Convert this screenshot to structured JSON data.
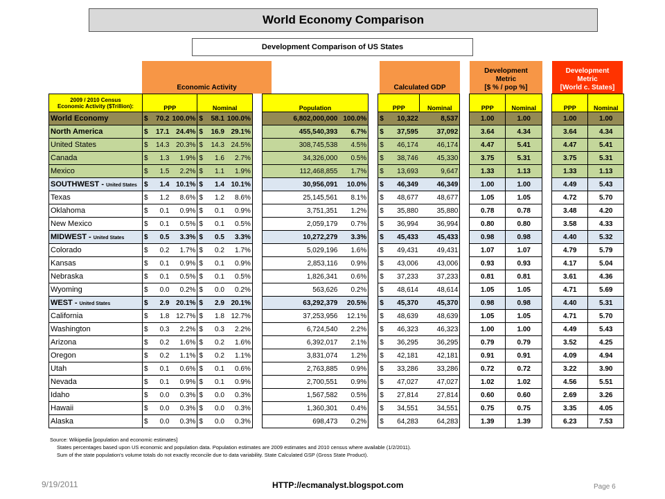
{
  "title": "World Economy Comparison",
  "subtitle": "Development Comparison of US States",
  "headers": {
    "economic_activity": "Economic Activity",
    "calculated_gdp": "Calculated GDP",
    "dev_metric_pop_1": "Development",
    "dev_metric_pop_2": "Metric",
    "dev_metric_pop_3": "[$ % / pop %]",
    "dev_metric_world_1": "Development",
    "dev_metric_world_2": "Metric",
    "dev_metric_world_3": "[World c. States]"
  },
  "subheaders": {
    "census_1": "2009 / 2010 Census",
    "census_2": "Economic Activity ($Trillion):",
    "ppp": "PPP",
    "nominal": "Nominal",
    "population": "Population",
    "gdp_ppp": "PPP",
    "gdp_nominal": "Nominal",
    "metric_ppp": "PPP",
    "metric_nominal": "Nominal",
    "world_ppp": "PPP",
    "world_nominal": "Nominal"
  },
  "rows": [
    {
      "label": "World Economy",
      "suffix": "",
      "ppp": "70.2",
      "ppp_pct": "100.0%",
      "nom": "58.1",
      "nom_pct": "100.0%",
      "pop": "6,802,000,000",
      "pop_pct": "100.0%",
      "gdp_ppp": "10,322",
      "gdp_nom": "8,537",
      "m_ppp": "1.00",
      "m_nom": "1.00",
      "w_ppp": "1.00",
      "w_nom": "1.00"
    },
    {
      "label": "North America",
      "suffix": "",
      "ppp": "17.1",
      "ppp_pct": "24.4%",
      "nom": "16.9",
      "nom_pct": "29.1%",
      "pop": "455,540,393",
      "pop_pct": "6.7%",
      "gdp_ppp": "37,595",
      "gdp_nom": "37,092",
      "m_ppp": "3.64",
      "m_nom": "4.34",
      "w_ppp": "3.64",
      "w_nom": "4.34"
    },
    {
      "label": "United States",
      "suffix": "",
      "ppp": "14.3",
      "ppp_pct": "20.3%",
      "nom": "14.3",
      "nom_pct": "24.5%",
      "pop": "308,745,538",
      "pop_pct": "4.5%",
      "gdp_ppp": "46,174",
      "gdp_nom": "46,174",
      "m_ppp": "4.47",
      "m_nom": "5.41",
      "w_ppp": "4.47",
      "w_nom": "5.41"
    },
    {
      "label": "Canada",
      "suffix": "",
      "ppp": "1.3",
      "ppp_pct": "1.9%",
      "nom": "1.6",
      "nom_pct": "2.7%",
      "pop": "34,326,000",
      "pop_pct": "0.5%",
      "gdp_ppp": "38,746",
      "gdp_nom": "45,330",
      "m_ppp": "3.75",
      "m_nom": "5.31",
      "w_ppp": "3.75",
      "w_nom": "5.31"
    },
    {
      "label": "Mexico",
      "suffix": "",
      "ppp": "1.5",
      "ppp_pct": "2.2%",
      "nom": "1.1",
      "nom_pct": "1.9%",
      "pop": "112,468,855",
      "pop_pct": "1.7%",
      "gdp_ppp": "13,693",
      "gdp_nom": "9,647",
      "m_ppp": "1.33",
      "m_nom": "1.13",
      "w_ppp": "1.33",
      "w_nom": "1.13"
    },
    {
      "label": "SOUTHWEST - ",
      "suffix": "United States",
      "ppp": "1.4",
      "ppp_pct": "10.1%",
      "nom": "1.4",
      "nom_pct": "10.1%",
      "pop": "30,956,091",
      "pop_pct": "10.0%",
      "gdp_ppp": "46,349",
      "gdp_nom": "46,349",
      "m_ppp": "1.00",
      "m_nom": "1.00",
      "w_ppp": "4.49",
      "w_nom": "5.43"
    },
    {
      "label": "Texas",
      "suffix": "",
      "ppp": "1.2",
      "ppp_pct": "8.6%",
      "nom": "1.2",
      "nom_pct": "8.6%",
      "pop": "25,145,561",
      "pop_pct": "8.1%",
      "gdp_ppp": "48,677",
      "gdp_nom": "48,677",
      "m_ppp": "1.05",
      "m_nom": "1.05",
      "w_ppp": "4.72",
      "w_nom": "5.70"
    },
    {
      "label": "Oklahoma",
      "suffix": "",
      "ppp": "0.1",
      "ppp_pct": "0.9%",
      "nom": "0.1",
      "nom_pct": "0.9%",
      "pop": "3,751,351",
      "pop_pct": "1.2%",
      "gdp_ppp": "35,880",
      "gdp_nom": "35,880",
      "m_ppp": "0.78",
      "m_nom": "0.78",
      "w_ppp": "3.48",
      "w_nom": "4.20"
    },
    {
      "label": "New Mexico",
      "suffix": "",
      "ppp": "0.1",
      "ppp_pct": "0.5%",
      "nom": "0.1",
      "nom_pct": "0.5%",
      "pop": "2,059,179",
      "pop_pct": "0.7%",
      "gdp_ppp": "36,994",
      "gdp_nom": "36,994",
      "m_ppp": "0.80",
      "m_nom": "0.80",
      "w_ppp": "3.58",
      "w_nom": "4.33"
    },
    {
      "label": "MIDWEST - ",
      "suffix": "United States",
      "ppp": "0.5",
      "ppp_pct": "3.3%",
      "nom": "0.5",
      "nom_pct": "3.3%",
      "pop": "10,272,279",
      "pop_pct": "3.3%",
      "gdp_ppp": "45,433",
      "gdp_nom": "45,433",
      "m_ppp": "0.98",
      "m_nom": "0.98",
      "w_ppp": "4.40",
      "w_nom": "5.32"
    },
    {
      "label": "Colorado",
      "suffix": "",
      "ppp": "0.2",
      "ppp_pct": "1.7%",
      "nom": "0.2",
      "nom_pct": "1.7%",
      "pop": "5,029,196",
      "pop_pct": "1.6%",
      "gdp_ppp": "49,431",
      "gdp_nom": "49,431",
      "m_ppp": "1.07",
      "m_nom": "1.07",
      "w_ppp": "4.79",
      "w_nom": "5.79"
    },
    {
      "label": "Kansas",
      "suffix": "",
      "ppp": "0.1",
      "ppp_pct": "0.9%",
      "nom": "0.1",
      "nom_pct": "0.9%",
      "pop": "2,853,116",
      "pop_pct": "0.9%",
      "gdp_ppp": "43,006",
      "gdp_nom": "43,006",
      "m_ppp": "0.93",
      "m_nom": "0.93",
      "w_ppp": "4.17",
      "w_nom": "5.04"
    },
    {
      "label": "Nebraska",
      "suffix": "",
      "ppp": "0.1",
      "ppp_pct": "0.5%",
      "nom": "0.1",
      "nom_pct": "0.5%",
      "pop": "1,826,341",
      "pop_pct": "0.6%",
      "gdp_ppp": "37,233",
      "gdp_nom": "37,233",
      "m_ppp": "0.81",
      "m_nom": "0.81",
      "w_ppp": "3.61",
      "w_nom": "4.36"
    },
    {
      "label": "Wyoming",
      "suffix": "",
      "ppp": "0.0",
      "ppp_pct": "0.2%",
      "nom": "0.0",
      "nom_pct": "0.2%",
      "pop": "563,626",
      "pop_pct": "0.2%",
      "gdp_ppp": "48,614",
      "gdp_nom": "48,614",
      "m_ppp": "1.05",
      "m_nom": "1.05",
      "w_ppp": "4.71",
      "w_nom": "5.69"
    },
    {
      "label": "WEST - ",
      "suffix": "United States",
      "ppp": "2.9",
      "ppp_pct": "20.1%",
      "nom": "2.9",
      "nom_pct": "20.1%",
      "pop": "63,292,379",
      "pop_pct": "20.5%",
      "gdp_ppp": "45,370",
      "gdp_nom": "45,370",
      "m_ppp": "0.98",
      "m_nom": "0.98",
      "w_ppp": "4.40",
      "w_nom": "5.31"
    },
    {
      "label": "California",
      "suffix": "",
      "ppp": "1.8",
      "ppp_pct": "12.7%",
      "nom": "1.8",
      "nom_pct": "12.7%",
      "pop": "37,253,956",
      "pop_pct": "12.1%",
      "gdp_ppp": "48,639",
      "gdp_nom": "48,639",
      "m_ppp": "1.05",
      "m_nom": "1.05",
      "w_ppp": "4.71",
      "w_nom": "5.70"
    },
    {
      "label": "Washington",
      "suffix": "",
      "ppp": "0.3",
      "ppp_pct": "2.2%",
      "nom": "0.3",
      "nom_pct": "2.2%",
      "pop": "6,724,540",
      "pop_pct": "2.2%",
      "gdp_ppp": "46,323",
      "gdp_nom": "46,323",
      "m_ppp": "1.00",
      "m_nom": "1.00",
      "w_ppp": "4.49",
      "w_nom": "5.43"
    },
    {
      "label": "Arizona",
      "suffix": "",
      "ppp": "0.2",
      "ppp_pct": "1.6%",
      "nom": "0.2",
      "nom_pct": "1.6%",
      "pop": "6,392,017",
      "pop_pct": "2.1%",
      "gdp_ppp": "36,295",
      "gdp_nom": "36,295",
      "m_ppp": "0.79",
      "m_nom": "0.79",
      "w_ppp": "3.52",
      "w_nom": "4.25"
    },
    {
      "label": "Oregon",
      "suffix": "",
      "ppp": "0.2",
      "ppp_pct": "1.1%",
      "nom": "0.2",
      "nom_pct": "1.1%",
      "pop": "3,831,074",
      "pop_pct": "1.2%",
      "gdp_ppp": "42,181",
      "gdp_nom": "42,181",
      "m_ppp": "0.91",
      "m_nom": "0.91",
      "w_ppp": "4.09",
      "w_nom": "4.94"
    },
    {
      "label": "Utah",
      "suffix": "",
      "ppp": "0.1",
      "ppp_pct": "0.6%",
      "nom": "0.1",
      "nom_pct": "0.6%",
      "pop": "2,763,885",
      "pop_pct": "0.9%",
      "gdp_ppp": "33,286",
      "gdp_nom": "33,286",
      "m_ppp": "0.72",
      "m_nom": "0.72",
      "w_ppp": "3.22",
      "w_nom": "3.90"
    },
    {
      "label": "Nevada",
      "suffix": "",
      "ppp": "0.1",
      "ppp_pct": "0.9%",
      "nom": "0.1",
      "nom_pct": "0.9%",
      "pop": "2,700,551",
      "pop_pct": "0.9%",
      "gdp_ppp": "47,027",
      "gdp_nom": "47,027",
      "m_ppp": "1.02",
      "m_nom": "1.02",
      "w_ppp": "4.56",
      "w_nom": "5.51"
    },
    {
      "label": "Idaho",
      "suffix": "",
      "ppp": "0.0",
      "ppp_pct": "0.3%",
      "nom": "0.0",
      "nom_pct": "0.3%",
      "pop": "1,567,582",
      "pop_pct": "0.5%",
      "gdp_ppp": "27,814",
      "gdp_nom": "27,814",
      "m_ppp": "0.60",
      "m_nom": "0.60",
      "w_ppp": "2.69",
      "w_nom": "3.26"
    },
    {
      "label": "Hawaii",
      "suffix": "",
      "ppp": "0.0",
      "ppp_pct": "0.3%",
      "nom": "0.0",
      "nom_pct": "0.3%",
      "pop": "1,360,301",
      "pop_pct": "0.4%",
      "gdp_ppp": "34,551",
      "gdp_nom": "34,551",
      "m_ppp": "0.75",
      "m_nom": "0.75",
      "w_ppp": "3.35",
      "w_nom": "4.05"
    },
    {
      "label": "Alaska",
      "suffix": "",
      "ppp": "0.0",
      "ppp_pct": "0.3%",
      "nom": "0.0",
      "nom_pct": "0.3%",
      "pop": "698,473",
      "pop_pct": "0.2%",
      "gdp_ppp": "64,283",
      "gdp_nom": "64,283",
      "m_ppp": "1.39",
      "m_nom": "1.39",
      "w_ppp": "6.23",
      "w_nom": "7.53"
    }
  ],
  "currency_symbol": "$",
  "footnotes": {
    "source": "Source: Wikipedia [population and economic estimates]",
    "note1": "States percentages based upon US economic and population data. Population estimates are 2009 estimates and 2010 census where available (1/2/2011).",
    "note2": "Sum of the state population's volume totals do not exactly reconcile due to data variability. State Calculated GSP (Gross State Product)."
  },
  "footer": {
    "date": "9/19/2011",
    "url": "HTTP://ecmanalyst.blogspot.com",
    "page": "Page 6"
  },
  "colors": {
    "orange_header": "#f79646",
    "red_header": "#ff3300",
    "yellow_subheader": "#ffff00",
    "world_row": "#948a54",
    "north_america_rows": "#c4d79b",
    "region_rows": "#dce6f1"
  }
}
